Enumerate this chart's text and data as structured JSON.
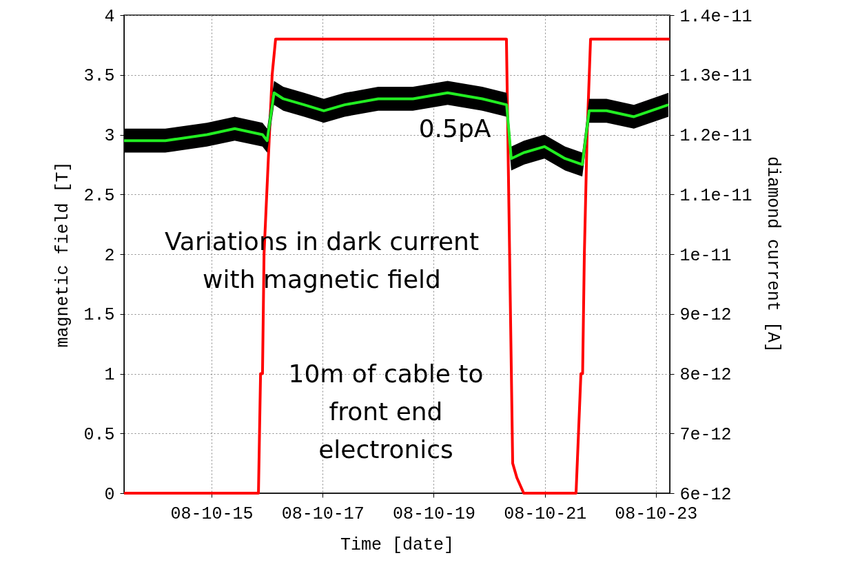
{
  "chart_data": {
    "type": "line",
    "xlabel": "Time [date]",
    "ylabel": "magnetic field [T]",
    "y2label": "diamond current [A]",
    "xlim": [
      "--10-13T10:10",
      "--10-23T06:00"
    ],
    "xticks": [
      {
        "value": "--10-15",
        "label": "08-10-15"
      },
      {
        "value": "--10-17",
        "label": "08-10-17"
      },
      {
        "value": "--10-19",
        "label": "08-10-19"
      },
      {
        "value": "--10-21",
        "label": "08-10-21"
      },
      {
        "value": "--10-23",
        "label": "08-10-23"
      }
    ],
    "ylim": [
      0,
      4
    ],
    "yticks": [
      0,
      0.5,
      1,
      1.5,
      2,
      2.5,
      3,
      3.5,
      4
    ],
    "y2lim": [
      6e-12,
      1.4e-11
    ],
    "y2ticks": [
      {
        "value": 6e-12,
        "label": "6e-12"
      },
      {
        "value": 7e-12,
        "label": "7e-12"
      },
      {
        "value": 8e-12,
        "label": "8e-12"
      },
      {
        "value": 9e-12,
        "label": "9e-12"
      },
      {
        "value": 1e-11,
        "label": "1e-11"
      },
      {
        "value": 1.1e-11,
        "label": "1.1e-11"
      },
      {
        "value": 1.2e-11,
        "label": "1.2e-11"
      },
      {
        "value": 1.3e-11,
        "label": "1.3e-11"
      },
      {
        "value": 1.4e-11,
        "label": "1.4e-11"
      }
    ],
    "grid": true,
    "series": [
      {
        "color": "#ff0000",
        "x": [
          "--10-13T10:10",
          "--10-15T20:15",
          "--10-15T21:10",
          "--10-15T22:00",
          "--10-15T22:40",
          "--10-16T02:10",
          "--10-16T03:40",
          "--10-20T07:25",
          "--10-20T10:07",
          "--10-20T11:55",
          "--10-20T14:53",
          "--10-21T13:30",
          "--10-21T15:36",
          "--10-21T16:20",
          "--10-21T17:05",
          "--10-21T18:17",
          "--10-21T19:46",
          "--10-23T06:00"
        ],
        "values": [
          0,
          0,
          1,
          1,
          2,
          3.5,
          3.8,
          3.8,
          0.25,
          0.13,
          0,
          0,
          1,
          1,
          2,
          3,
          3.8,
          3.8
        ]
      },
      {
        "axis": "y2",
        "color": "#22ee22",
        "x": [
          "--10-13T10:10",
          "--10-14T04:00",
          "--10-14T22:00",
          "--10-15T10:00",
          "--10-15T22:00",
          "--10-16T00:00",
          "--10-16T03:00",
          "--10-16T07:00",
          "--10-16T16:00",
          "--10-17T00:30",
          "--10-17T09:30",
          "--10-18T00:00",
          "--10-18T15:00",
          "--10-19T06:00",
          "--10-19T21:00",
          "--10-20T07:30",
          "--10-20T09:30",
          "--10-20T15:00",
          "--10-20T23:50",
          "--10-21T08:45",
          "--10-21T16:12",
          "--10-21T19:10",
          "--10-22T02:40",
          "--10-22T14:30",
          "--10-23T05:25"
        ],
        "values": [
          1.19e-11,
          1.19e-11,
          1.2e-11,
          1.21e-11,
          1.2e-11,
          1.19e-11,
          1.27e-11,
          1.26e-11,
          1.25e-11,
          1.24e-11,
          1.25e-11,
          1.26e-11,
          1.26e-11,
          1.27e-11,
          1.26e-11,
          1.25e-11,
          1.16e-11,
          1.17e-11,
          1.18e-11,
          1.16e-11,
          1.15e-11,
          1.24e-11,
          1.24e-11,
          1.23e-11,
          1.25e-11
        ],
        "lower": [
          1.17e-11,
          1.17e-11,
          1.18e-11,
          1.19e-11,
          1.18e-11,
          1.17e-11,
          1.25e-11,
          1.24e-11,
          1.23e-11,
          1.22e-11,
          1.23e-11,
          1.24e-11,
          1.24e-11,
          1.25e-11,
          1.24e-11,
          1.23e-11,
          1.14e-11,
          1.15e-11,
          1.16e-11,
          1.14e-11,
          1.13e-11,
          1.22e-11,
          1.22e-11,
          1.21e-11,
          1.23e-11
        ],
        "upper": [
          1.21e-11,
          1.21e-11,
          1.22e-11,
          1.23e-11,
          1.22e-11,
          1.21e-11,
          1.29e-11,
          1.28e-11,
          1.27e-11,
          1.26e-11,
          1.27e-11,
          1.28e-11,
          1.28e-11,
          1.29e-11,
          1.28e-11,
          1.27e-11,
          1.18e-11,
          1.19e-11,
          1.2e-11,
          1.18e-11,
          1.17e-11,
          1.26e-11,
          1.26e-11,
          1.25e-11,
          1.27e-11
        ]
      }
    ],
    "annotations": [
      "0.5pA",
      "Variations in dark current\nwith magnetic field",
      "10m of cable to\nfront end\nelectronics"
    ]
  }
}
